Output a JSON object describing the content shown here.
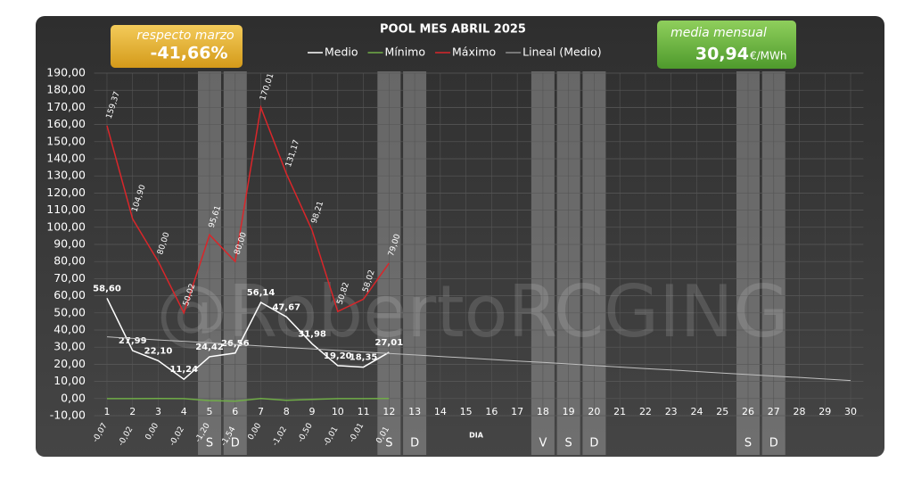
{
  "chart_data": {
    "type": "line",
    "title": "POOL  MES ABRIL 2025",
    "x_label": "DIA",
    "watermark": "@RobertoRCGING",
    "categories": [
      "1",
      "2",
      "3",
      "4",
      "5",
      "6",
      "7",
      "8",
      "9",
      "10",
      "11",
      "12",
      "13",
      "14",
      "15",
      "16",
      "17",
      "18",
      "19",
      "20",
      "21",
      "22",
      "23",
      "24",
      "25",
      "26",
      "27",
      "28",
      "29",
      "30"
    ],
    "series": [
      {
        "name": "Medio",
        "color": "#ffffff",
        "values": [
          58.6,
          27.99,
          22.1,
          11.24,
          24.42,
          26.56,
          56.14,
          47.67,
          31.98,
          19.2,
          18.35,
          27.01,
          null,
          null,
          null,
          null,
          null,
          null,
          null,
          null,
          null,
          null,
          null,
          null,
          null,
          null,
          null,
          null,
          null,
          null
        ],
        "value_labels": [
          "58,60",
          "27,99",
          "22,10",
          "11,24",
          "24,42",
          "26,56",
          "56,14",
          "47,67",
          "31,98",
          "19,20",
          "18,35",
          "27,01",
          null,
          null,
          null,
          null,
          null,
          null,
          null,
          null,
          null,
          null,
          null,
          null,
          null,
          null,
          null,
          null,
          null,
          null
        ]
      },
      {
        "name": "Mínimo",
        "color": "#70ad47",
        "values": [
          -0.07,
          -0.02,
          0.0,
          -0.02,
          -1.2,
          -1.54,
          0.0,
          -1.02,
          -0.5,
          -0.01,
          -0.01,
          0.01,
          null,
          null,
          null,
          null,
          null,
          null,
          null,
          null,
          null,
          null,
          null,
          null,
          null,
          null,
          null,
          null,
          null,
          null
        ],
        "value_labels": [
          "-0,07",
          "-0,02",
          "0,00",
          "-0,02",
          "-1,20",
          "-1,54",
          "0,00",
          "-1,02",
          "-0,50",
          "-0,01",
          "-0,01",
          "0,01",
          null,
          null,
          null,
          null,
          null,
          null,
          null,
          null,
          null,
          null,
          null,
          null,
          null,
          null,
          null,
          null,
          null,
          null
        ]
      },
      {
        "name": "Máximo",
        "color": "#d9262a",
        "values": [
          159.37,
          104.9,
          80.0,
          50.02,
          95.61,
          80.0,
          170.01,
          131.17,
          98.21,
          50.82,
          58.02,
          79.0,
          null,
          null,
          null,
          null,
          null,
          null,
          null,
          null,
          null,
          null,
          null,
          null,
          null,
          null,
          null,
          null,
          null,
          null
        ],
        "value_labels": [
          "159,37",
          "104,90",
          "80,00",
          "50,02",
          "95,61",
          "80,00",
          "170,01",
          "131,17",
          "98,21",
          "50,82",
          "58,02",
          "79,00",
          null,
          null,
          null,
          null,
          null,
          null,
          null,
          null,
          null,
          null,
          null,
          null,
          null,
          null,
          null,
          null,
          null,
          null
        ]
      },
      {
        "name": "Lineal (Medio)",
        "color": "#bfbfbf",
        "values": [
          36.0,
          35.1,
          34.2,
          33.4,
          32.5,
          31.6,
          30.7,
          29.8,
          29.0,
          28.1,
          27.2,
          26.3,
          25.5,
          24.6,
          23.7,
          22.8,
          21.9,
          21.1,
          20.2,
          19.3,
          18.4,
          17.5,
          16.7,
          15.8,
          14.9,
          14.0,
          13.1,
          12.3,
          11.4,
          10.5
        ]
      }
    ],
    "ylim": [
      -10,
      190
    ],
    "yticks": [
      {
        "value": -10,
        "label": "-10,00"
      },
      {
        "value": 0,
        "label": "0,00"
      },
      {
        "value": 10,
        "label": "10,00"
      },
      {
        "value": 20,
        "label": "20,00"
      },
      {
        "value": 30,
        "label": "30,00"
      },
      {
        "value": 40,
        "label": "40,00"
      },
      {
        "value": 50,
        "label": "50,00"
      },
      {
        "value": 60,
        "label": "60,00"
      },
      {
        "value": 70,
        "label": "70,00"
      },
      {
        "value": 80,
        "label": "80,00"
      },
      {
        "value": 90,
        "label": "90,00"
      },
      {
        "value": 100,
        "label": "100,00"
      },
      {
        "value": 110,
        "label": "110,00"
      },
      {
        "value": 120,
        "label": "120,00"
      },
      {
        "value": 130,
        "label": "130,00"
      },
      {
        "value": 140,
        "label": "140,00"
      },
      {
        "value": 150,
        "label": "150,00"
      },
      {
        "value": 160,
        "label": "160,00"
      },
      {
        "value": 170,
        "label": "170,00"
      },
      {
        "value": 180,
        "label": "180,00"
      },
      {
        "value": 190,
        "label": "190,00"
      }
    ],
    "grid": true,
    "bands": [
      {
        "x": "5",
        "label": "S"
      },
      {
        "x": "6",
        "label": "D"
      },
      {
        "x": "12",
        "label": "S"
      },
      {
        "x": "13",
        "label": "D"
      },
      {
        "x": "18",
        "label": "V"
      },
      {
        "x": "19",
        "label": "S"
      },
      {
        "x": "20",
        "label": "D"
      },
      {
        "x": "26",
        "label": "S"
      },
      {
        "x": "27",
        "label": "D"
      }
    ],
    "left_box": {
      "label": "respecto marzo",
      "value": "-41,66%"
    },
    "right_box": {
      "label": "media mensual",
      "value": "30,94",
      "unit": "€/MWh"
    }
  }
}
